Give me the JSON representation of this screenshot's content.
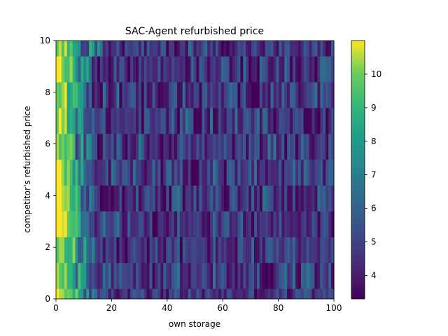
{
  "chart_data": {
    "type": "heatmap",
    "title": "SAC-Agent refurbished price",
    "xlabel": "own storage",
    "ylabel": "competitor's refurbished price",
    "xlim": [
      0,
      100
    ],
    "ylim": [
      0,
      10
    ],
    "x_ticks": [
      "0",
      "20",
      "40",
      "60",
      "80",
      "100"
    ],
    "y_ticks": [
      "0",
      "2",
      "4",
      "6",
      "8",
      "10"
    ],
    "colorbar": {
      "colormap": "viridis",
      "range": [
        3.3,
        11.0
      ],
      "ticks": [
        "4",
        "5",
        "6",
        "7",
        "8",
        "9",
        "10"
      ]
    },
    "grid": false,
    "legend": "none",
    "rows": 11,
    "columns": 101,
    "pattern": {
      "row_ranges": [
        [
          0,
          0.4
        ],
        [
          0.4,
          1.4
        ],
        [
          1.4,
          2.4
        ],
        [
          2.4,
          3.4
        ],
        [
          3.4,
          4.4
        ],
        [
          4.4,
          5.4
        ],
        [
          5.4,
          6.4
        ],
        [
          6.4,
          7.4
        ],
        [
          7.4,
          8.4
        ],
        [
          8.4,
          9.4
        ],
        [
          9.4,
          10
        ]
      ],
      "high_value_near_x0": 10.8,
      "decay_to_x": [
        14,
        12,
        14,
        11,
        13,
        10,
        12,
        11,
        10,
        12,
        15
      ],
      "background_mean": 4.6,
      "background_spread": 1.4
    }
  }
}
